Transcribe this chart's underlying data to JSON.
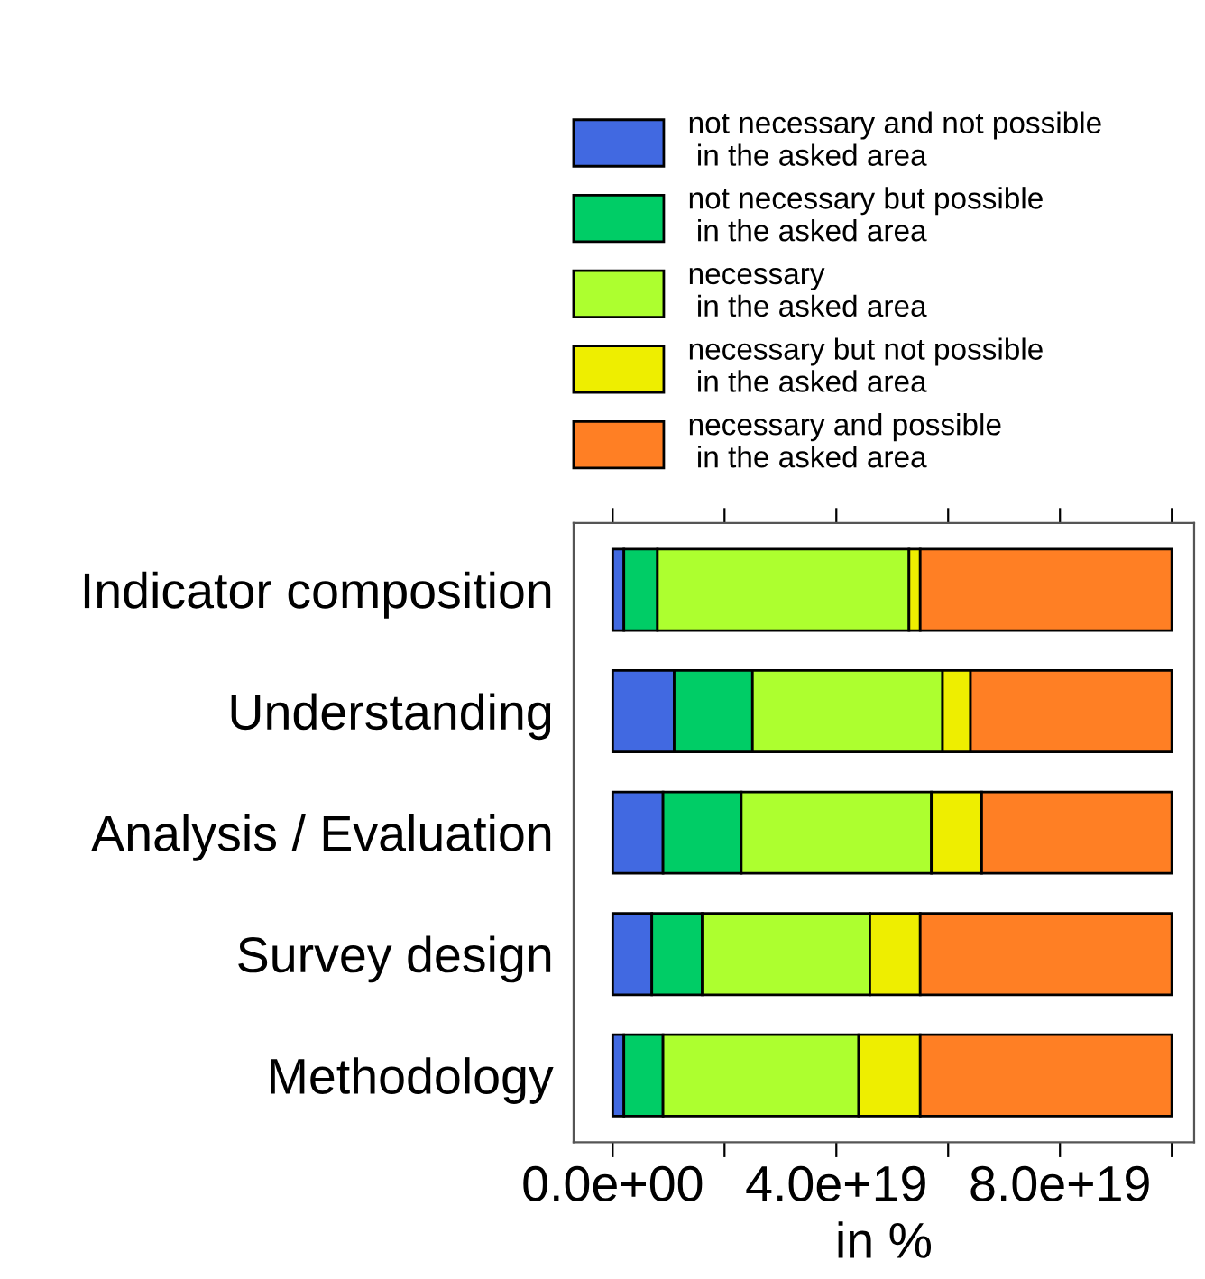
{
  "chart_data": {
    "type": "bar",
    "orientation": "horizontal",
    "stacked": true,
    "xlabel": "in %",
    "categories": [
      "Indicator composition",
      "Understanding",
      "Analysis / Evaluation",
      "Survey design",
      "Methodology"
    ],
    "series": [
      {
        "name": "not necessary and not possible\n in the asked area",
        "color": "#4169e1",
        "values": [
          2e+18,
          1.1e+19,
          9e+18,
          7e+18,
          2e+18
        ]
      },
      {
        "name": "not necessary but possible\n in the asked area",
        "color": "#00cd66",
        "values": [
          6e+18,
          1.4e+19,
          1.4e+19,
          9e+18,
          7e+18
        ]
      },
      {
        "name": "necessary\n in the asked area",
        "color": "#adff2f",
        "values": [
          4.5e+19,
          3.4e+19,
          3.4e+19,
          3e+19,
          3.5e+19
        ]
      },
      {
        "name": "necessary but not possible\n in the asked area",
        "color": "#eeee00",
        "values": [
          2e+18,
          5e+18,
          9e+18,
          9e+18,
          1.1e+19
        ]
      },
      {
        "name": "necessary and possible\n in the asked area",
        "color": "#ff7f24",
        "values": [
          4.5e+19,
          3.6e+19,
          3.4e+19,
          4.5e+19,
          4.5e+19
        ]
      }
    ],
    "xlim": [
      -7e+18,
      1.04e+20
    ],
    "xticks": [
      {
        "value": 0,
        "label": "0.0e+00"
      },
      {
        "value": 2e+19,
        "label": null
      },
      {
        "value": 4e+19,
        "label": "4.0e+19"
      },
      {
        "value": 6e+19,
        "label": null
      },
      {
        "value": 8e+19,
        "label": "8.0e+19"
      },
      {
        "value": 1e+20,
        "label": null
      }
    ],
    "legend": "top",
    "grid": false
  }
}
